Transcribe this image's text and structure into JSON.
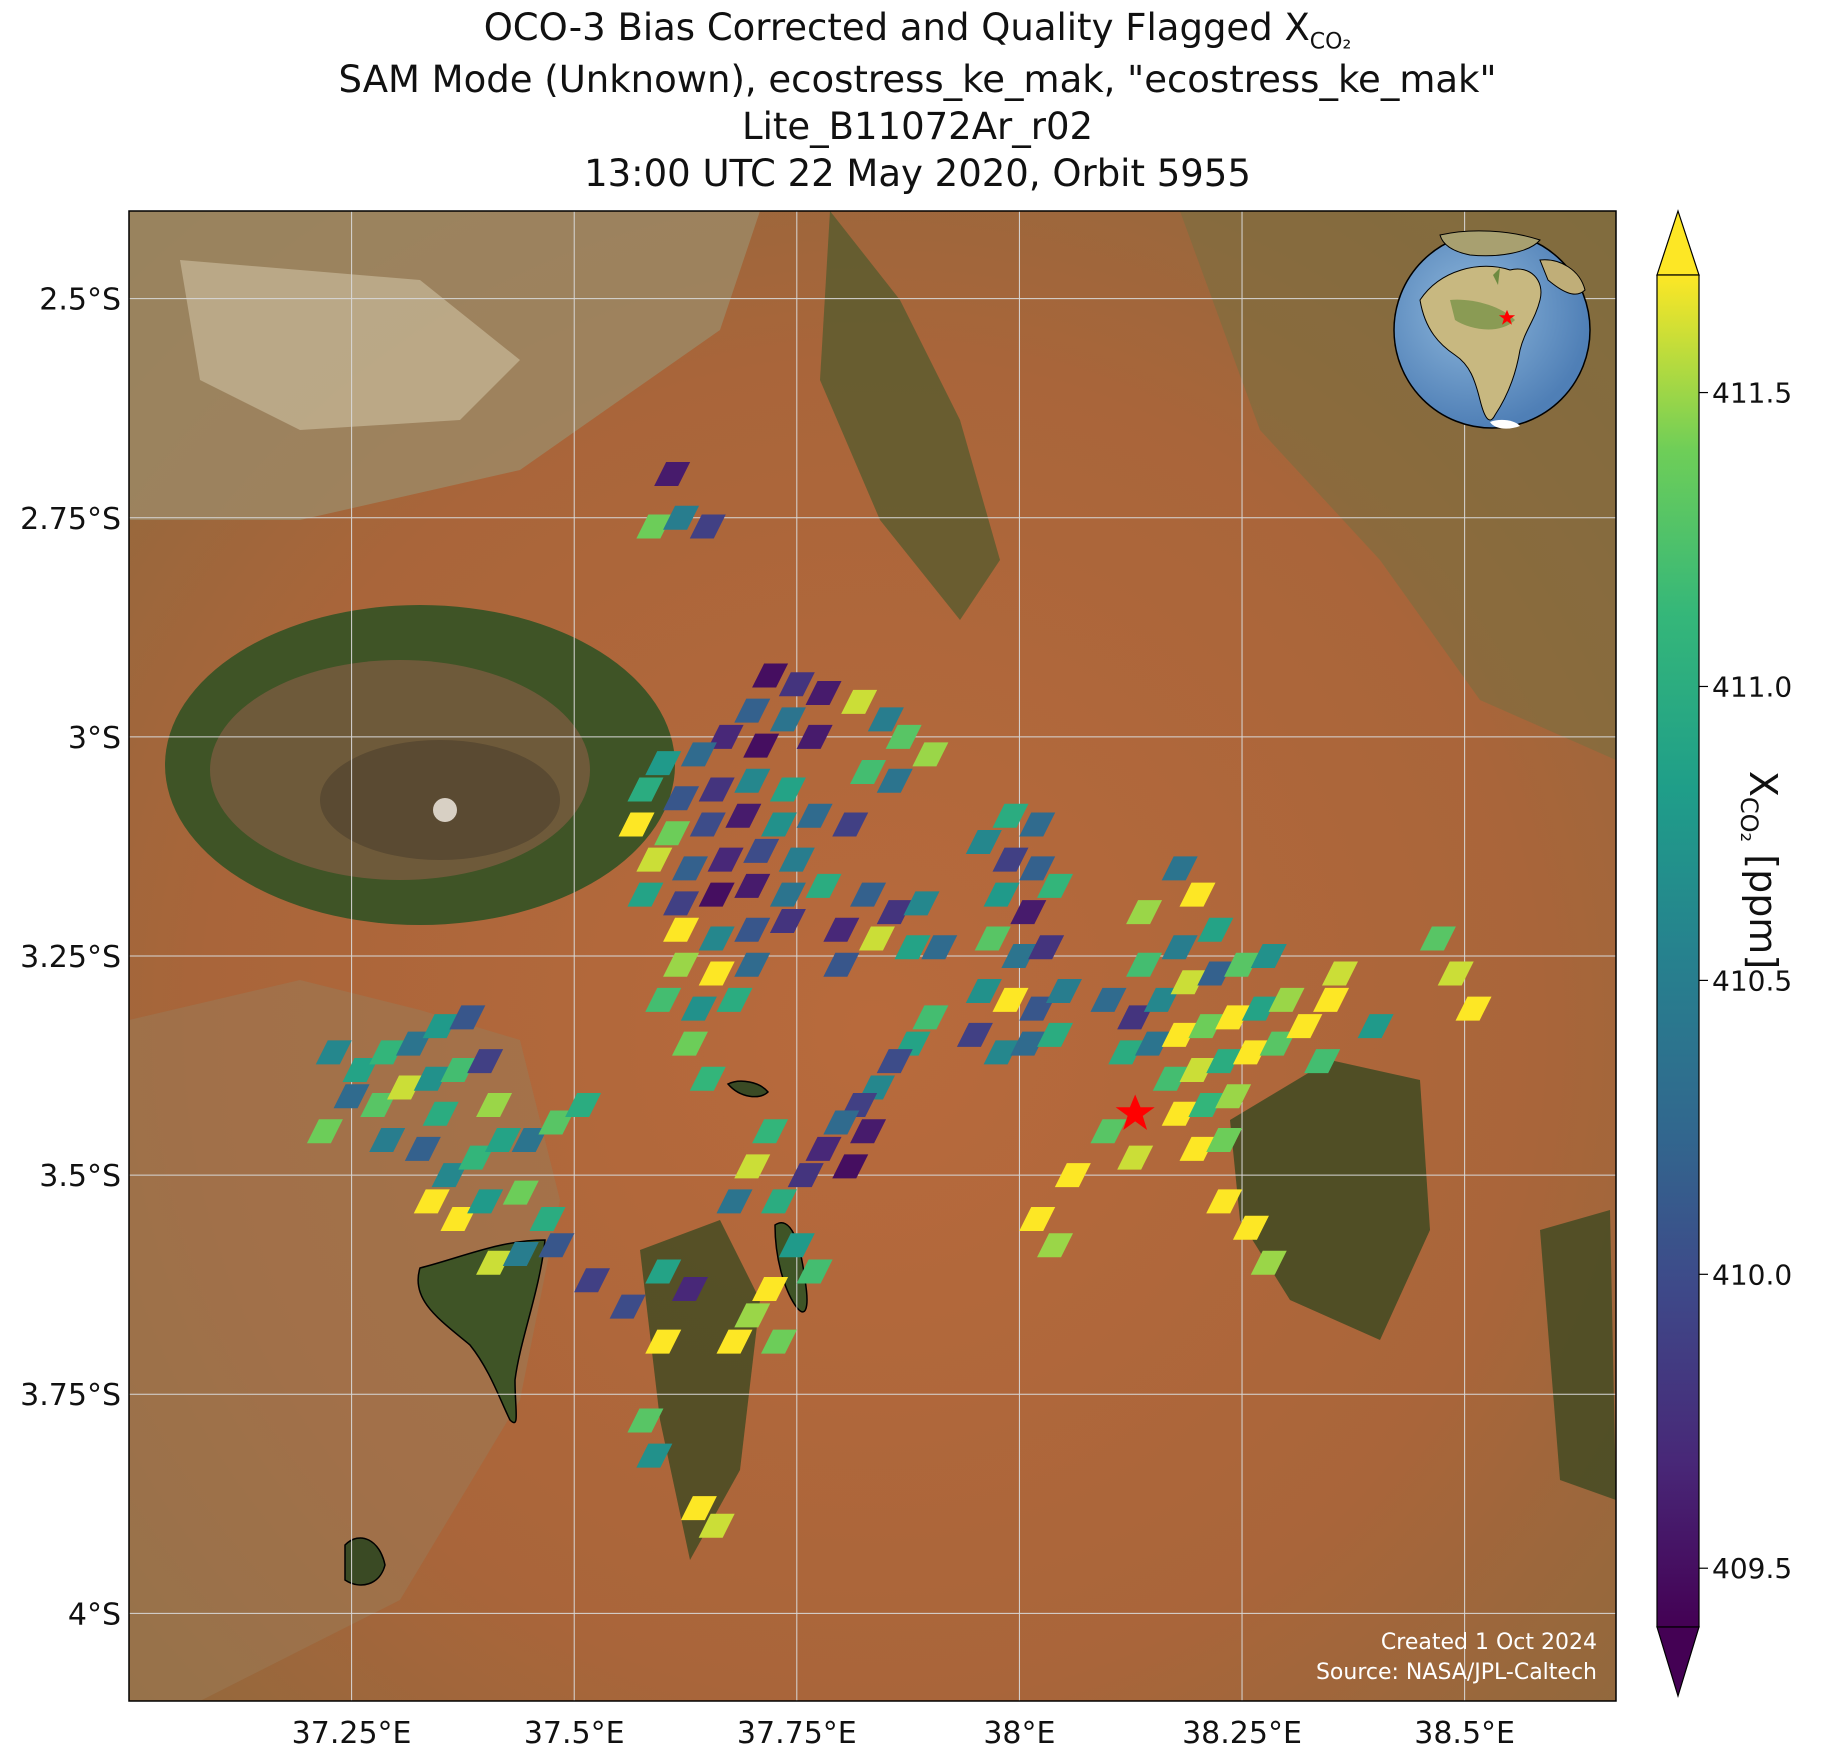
{
  "title": {
    "line1_prefix": "OCO-3 Bias Corrected and Quality Flagged X",
    "line1_sub": "CO₂",
    "line2": "SAM Mode (Unknown), ecostress_ke_mak, \"ecostress_ke_mak\"",
    "line3": "Lite_B11072Ar_r02",
    "line4": "13:00 UTC 22 May 2020, Orbit 5955"
  },
  "map": {
    "lon_range": [
      37.0,
      38.67
    ],
    "lat_range": [
      -4.1,
      -2.4
    ],
    "lat_ticks": [
      {
        "value": -2.5,
        "label": "2.5°S"
      },
      {
        "value": -2.75,
        "label": "2.75°S"
      },
      {
        "value": -3.0,
        "label": "3°S"
      },
      {
        "value": -3.25,
        "label": "3.25°S"
      },
      {
        "value": -3.5,
        "label": "3.5°S"
      },
      {
        "value": -3.75,
        "label": "3.75°S"
      },
      {
        "value": -4.0,
        "label": "4°S"
      }
    ],
    "lon_ticks": [
      {
        "value": 37.25,
        "label": "37.25°E"
      },
      {
        "value": 37.5,
        "label": "37.5°E"
      },
      {
        "value": 37.75,
        "label": "37.75°E"
      },
      {
        "value": 38.0,
        "label": "38°E"
      },
      {
        "value": 38.25,
        "label": "38.25°E"
      },
      {
        "value": 38.5,
        "label": "38.5°E"
      }
    ],
    "grid": true,
    "target": {
      "lon": 38.13,
      "lat": -3.43,
      "marker": "red-star"
    },
    "inset": "globe-africa-location-icon",
    "credit_line1": "Created 1 Oct 2024",
    "credit_line2": "Source: NASA/JPL-Caltech",
    "colors": {
      "land": "#b8683a",
      "forest": "#4a5a28",
      "star": "#ff0000"
    }
  },
  "colorbar": {
    "min": 409.4,
    "max": 411.7,
    "extend": "both",
    "colormap": "viridis",
    "ticks": [
      {
        "value": 409.5,
        "label": "409.5"
      },
      {
        "value": 410.0,
        "label": "410.0"
      },
      {
        "value": 410.5,
        "label": "410.5"
      },
      {
        "value": 411.0,
        "label": "411.0"
      },
      {
        "value": 411.5,
        "label": "411.5"
      }
    ],
    "label_prefix": "X",
    "label_sub": "CO₂",
    "label_suffix": " [ppm]"
  },
  "soundings": {
    "description_unit": "ppm",
    "points": [
      [
        37.61,
        -2.7,
        409.6
      ],
      [
        37.59,
        -2.76,
        411.4
      ],
      [
        37.62,
        -2.75,
        410.5
      ],
      [
        37.65,
        -2.76,
        409.9
      ],
      [
        37.72,
        -2.93,
        409.5
      ],
      [
        37.75,
        -2.94,
        409.8
      ],
      [
        37.78,
        -2.95,
        409.6
      ],
      [
        37.7,
        -2.97,
        410.2
      ],
      [
        37.74,
        -2.98,
        410.4
      ],
      [
        37.67,
        -3.0,
        409.7
      ],
      [
        37.71,
        -3.01,
        409.5
      ],
      [
        37.77,
        -3.0,
        409.6
      ],
      [
        37.64,
        -3.02,
        410.3
      ],
      [
        37.6,
        -3.03,
        410.8
      ],
      [
        37.82,
        -2.96,
        411.6
      ],
      [
        37.85,
        -2.98,
        410.5
      ],
      [
        37.87,
        -3.0,
        411.3
      ],
      [
        37.9,
        -3.02,
        411.5
      ],
      [
        37.83,
        -3.04,
        411.2
      ],
      [
        37.86,
        -3.05,
        410.4
      ],
      [
        37.58,
        -3.06,
        411.0
      ],
      [
        37.62,
        -3.07,
        410.1
      ],
      [
        37.66,
        -3.06,
        409.8
      ],
      [
        37.7,
        -3.05,
        410.6
      ],
      [
        37.74,
        -3.06,
        410.9
      ],
      [
        37.57,
        -3.1,
        411.7
      ],
      [
        37.61,
        -3.11,
        411.4
      ],
      [
        37.65,
        -3.1,
        410.0
      ],
      [
        37.69,
        -3.09,
        409.6
      ],
      [
        37.73,
        -3.1,
        410.7
      ],
      [
        37.77,
        -3.09,
        410.3
      ],
      [
        37.81,
        -3.1,
        409.9
      ],
      [
        37.59,
        -3.14,
        411.6
      ],
      [
        37.63,
        -3.15,
        410.2
      ],
      [
        37.67,
        -3.14,
        409.7
      ],
      [
        37.71,
        -3.13,
        410.0
      ],
      [
        37.75,
        -3.14,
        410.5
      ],
      [
        37.58,
        -3.18,
        410.9
      ],
      [
        37.62,
        -3.19,
        409.9
      ],
      [
        37.66,
        -3.18,
        409.5
      ],
      [
        37.7,
        -3.17,
        409.6
      ],
      [
        37.74,
        -3.18,
        410.4
      ],
      [
        37.78,
        -3.17,
        411.0
      ],
      [
        37.62,
        -3.22,
        411.7
      ],
      [
        37.66,
        -3.23,
        410.6
      ],
      [
        37.7,
        -3.22,
        410.1
      ],
      [
        37.74,
        -3.21,
        409.8
      ],
      [
        37.62,
        -3.26,
        411.5
      ],
      [
        37.66,
        -3.27,
        411.8
      ],
      [
        37.7,
        -3.26,
        410.3
      ],
      [
        37.6,
        -3.3,
        411.2
      ],
      [
        37.64,
        -3.31,
        410.7
      ],
      [
        37.68,
        -3.3,
        411.0
      ],
      [
        37.63,
        -3.35,
        411.4
      ],
      [
        37.65,
        -3.39,
        411.1
      ],
      [
        37.83,
        -3.18,
        410.2
      ],
      [
        37.86,
        -3.2,
        409.8
      ],
      [
        37.89,
        -3.19,
        410.6
      ],
      [
        37.84,
        -3.23,
        411.6
      ],
      [
        37.88,
        -3.24,
        410.9
      ],
      [
        37.8,
        -3.22,
        409.7
      ],
      [
        37.8,
        -3.26,
        410.1
      ],
      [
        37.91,
        -3.24,
        410.3
      ],
      [
        37.99,
        -3.09,
        411.0
      ],
      [
        38.02,
        -3.1,
        410.3
      ],
      [
        37.96,
        -3.12,
        410.6
      ],
      [
        37.99,
        -3.14,
        409.9
      ],
      [
        38.02,
        -3.15,
        410.2
      ],
      [
        37.98,
        -3.18,
        410.8
      ],
      [
        38.01,
        -3.2,
        409.6
      ],
      [
        38.04,
        -3.17,
        411.1
      ],
      [
        37.97,
        -3.23,
        411.3
      ],
      [
        38.0,
        -3.25,
        410.4
      ],
      [
        38.03,
        -3.24,
        409.8
      ],
      [
        37.96,
        -3.29,
        410.7
      ],
      [
        37.99,
        -3.3,
        411.8
      ],
      [
        38.02,
        -3.31,
        410.1
      ],
      [
        38.05,
        -3.29,
        410.5
      ],
      [
        37.95,
        -3.34,
        409.9
      ],
      [
        37.98,
        -3.36,
        410.6
      ],
      [
        38.01,
        -3.35,
        410.3
      ],
      [
        38.04,
        -3.34,
        411.0
      ],
      [
        38.14,
        -3.2,
        411.5
      ],
      [
        38.18,
        -3.15,
        410.4
      ],
      [
        38.2,
        -3.18,
        411.7
      ],
      [
        38.22,
        -3.22,
        410.9
      ],
      [
        38.18,
        -3.24,
        410.5
      ],
      [
        38.14,
        -3.26,
        411.2
      ],
      [
        38.1,
        -3.3,
        410.3
      ],
      [
        38.13,
        -3.32,
        409.8
      ],
      [
        38.16,
        -3.3,
        410.6
      ],
      [
        38.19,
        -3.28,
        411.6
      ],
      [
        38.22,
        -3.27,
        410.2
      ],
      [
        38.25,
        -3.26,
        411.3
      ],
      [
        38.28,
        -3.25,
        410.7
      ],
      [
        38.12,
        -3.36,
        411.0
      ],
      [
        38.15,
        -3.35,
        410.4
      ],
      [
        38.18,
        -3.34,
        411.8
      ],
      [
        38.21,
        -3.33,
        411.4
      ],
      [
        38.24,
        -3.32,
        411.7
      ],
      [
        38.27,
        -3.31,
        410.9
      ],
      [
        38.3,
        -3.3,
        411.5
      ],
      [
        38.17,
        -3.39,
        411.2
      ],
      [
        38.2,
        -3.38,
        411.6
      ],
      [
        38.23,
        -3.37,
        411.0
      ],
      [
        38.26,
        -3.36,
        411.8
      ],
      [
        38.29,
        -3.35,
        411.3
      ],
      [
        38.18,
        -3.43,
        411.7
      ],
      [
        38.21,
        -3.42,
        411.1
      ],
      [
        38.24,
        -3.41,
        411.5
      ],
      [
        38.2,
        -3.47,
        411.8
      ],
      [
        38.23,
        -3.46,
        411.4
      ],
      [
        38.1,
        -3.45,
        411.3
      ],
      [
        38.13,
        -3.48,
        411.6
      ],
      [
        38.32,
        -3.33,
        411.7
      ],
      [
        38.35,
        -3.3,
        411.8
      ],
      [
        38.36,
        -3.27,
        411.6
      ],
      [
        38.34,
        -3.37,
        411.2
      ],
      [
        38.4,
        -3.33,
        410.8
      ],
      [
        38.47,
        -3.23,
        411.3
      ],
      [
        38.49,
        -3.27,
        411.6
      ],
      [
        38.51,
        -3.31,
        411.7
      ],
      [
        38.23,
        -3.53,
        411.8
      ],
      [
        38.26,
        -3.56,
        411.7
      ],
      [
        38.28,
        -3.6,
        411.5
      ],
      [
        38.02,
        -3.55,
        411.7
      ],
      [
        38.04,
        -3.58,
        411.5
      ],
      [
        38.06,
        -3.5,
        411.8
      ],
      [
        37.9,
        -3.32,
        411.2
      ],
      [
        37.88,
        -3.35,
        410.9
      ],
      [
        37.86,
        -3.37,
        410.0
      ],
      [
        37.84,
        -3.4,
        410.6
      ],
      [
        37.82,
        -3.42,
        409.9
      ],
      [
        37.8,
        -3.44,
        410.3
      ],
      [
        37.78,
        -3.47,
        409.7
      ],
      [
        37.83,
        -3.45,
        409.6
      ],
      [
        37.76,
        -3.5,
        409.8
      ],
      [
        37.81,
        -3.49,
        409.5
      ],
      [
        37.72,
        -3.45,
        411.1
      ],
      [
        37.7,
        -3.49,
        411.6
      ],
      [
        37.68,
        -3.53,
        410.4
      ],
      [
        37.73,
        -3.53,
        411.0
      ],
      [
        37.75,
        -3.58,
        410.8
      ],
      [
        37.77,
        -3.61,
        411.2
      ],
      [
        37.72,
        -3.63,
        411.8
      ],
      [
        37.7,
        -3.66,
        411.5
      ],
      [
        37.68,
        -3.69,
        411.7
      ],
      [
        37.73,
        -3.69,
        411.4
      ],
      [
        37.23,
        -3.36,
        410.6
      ],
      [
        37.26,
        -3.38,
        410.9
      ],
      [
        37.29,
        -3.36,
        411.1
      ],
      [
        37.32,
        -3.35,
        410.4
      ],
      [
        37.35,
        -3.33,
        410.8
      ],
      [
        37.38,
        -3.32,
        410.1
      ],
      [
        37.25,
        -3.41,
        410.3
      ],
      [
        37.28,
        -3.42,
        411.3
      ],
      [
        37.31,
        -3.4,
        411.6
      ],
      [
        37.34,
        -3.39,
        410.7
      ],
      [
        37.37,
        -3.38,
        411.2
      ],
      [
        37.4,
        -3.37,
        409.9
      ],
      [
        37.22,
        -3.45,
        411.4
      ],
      [
        37.29,
        -3.46,
        410.5
      ],
      [
        37.35,
        -3.43,
        411.0
      ],
      [
        37.41,
        -3.42,
        411.5
      ],
      [
        37.33,
        -3.47,
        410.2
      ],
      [
        37.36,
        -3.5,
        410.6
      ],
      [
        37.39,
        -3.48,
        411.1
      ],
      [
        37.42,
        -3.46,
        410.9
      ],
      [
        37.45,
        -3.46,
        410.4
      ],
      [
        37.48,
        -3.44,
        411.3
      ],
      [
        37.51,
        -3.42,
        411.0
      ],
      [
        37.34,
        -3.53,
        411.7
      ],
      [
        37.37,
        -3.55,
        411.8
      ],
      [
        37.4,
        -3.53,
        410.8
      ],
      [
        37.44,
        -3.52,
        411.4
      ],
      [
        37.47,
        -3.55,
        411.0
      ],
      [
        37.41,
        -3.6,
        411.6
      ],
      [
        37.44,
        -3.59,
        410.5
      ],
      [
        37.48,
        -3.58,
        410.1
      ],
      [
        37.52,
        -3.62,
        409.9
      ],
      [
        37.56,
        -3.65,
        410.0
      ],
      [
        37.6,
        -3.61,
        410.9
      ],
      [
        37.63,
        -3.63,
        409.7
      ],
      [
        37.6,
        -3.69,
        411.7
      ],
      [
        37.58,
        -3.78,
        411.3
      ],
      [
        37.59,
        -3.82,
        410.7
      ],
      [
        37.64,
        -3.88,
        411.8
      ],
      [
        37.66,
        -3.9,
        411.6
      ]
    ]
  }
}
